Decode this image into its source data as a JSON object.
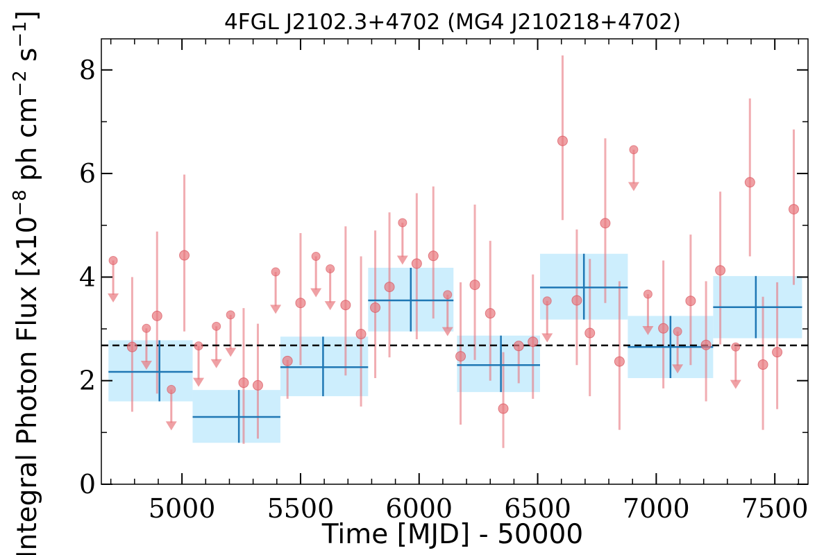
{
  "chart_data": {
    "type": "scatter",
    "title": "4FGL J2102.3+4702 (MG4 J210218+4702)",
    "xlabel": "Time [MJD] - 50000",
    "ylabel": "Integral Photon Flux [x10^-8 ph cm^-2 s^-1]",
    "xlim": [
      4660,
      7640
    ],
    "ylim": [
      0,
      8.6
    ],
    "x_ticks": [
      5000,
      5500,
      6000,
      6500,
      7000,
      7500
    ],
    "y_ticks": [
      0,
      2,
      4,
      6,
      8
    ],
    "grid": false,
    "mean_flux": 2.68,
    "colors": {
      "points": "#e8777e",
      "bins_fill": "#cdeefd",
      "bins_line": "#1f77b4",
      "mean_line": "#000000"
    },
    "series": [
      {
        "kind": "detections",
        "points": [
          {
            "x": 4790,
            "y": 2.65,
            "low": 1.4,
            "high": 4.0
          },
          {
            "x": 4895,
            "y": 3.25,
            "low": 1.75,
            "high": 4.88
          },
          {
            "x": 5010,
            "y": 4.42,
            "low": 2.95,
            "high": 5.98
          },
          {
            "x": 5260,
            "y": 1.96,
            "low": 0.78,
            "high": 3.4
          },
          {
            "x": 5320,
            "y": 1.91,
            "low": 0.88,
            "high": 3.1
          },
          {
            "x": 5445,
            "y": 2.38,
            "low": 1.65,
            "high": 2.4
          },
          {
            "x": 5500,
            "y": 3.5,
            "low": 2.3,
            "high": 4.85
          },
          {
            "x": 5690,
            "y": 3.46,
            "low": 2.1,
            "high": 4.98
          },
          {
            "x": 5755,
            "y": 2.9,
            "low": 1.5,
            "high": 4.4
          },
          {
            "x": 5815,
            "y": 3.41,
            "low": 2.05,
            "high": 4.9
          },
          {
            "x": 5875,
            "y": 3.81,
            "low": 2.45,
            "high": 5.25
          },
          {
            "x": 5990,
            "y": 4.26,
            "low": 2.8,
            "high": 5.62
          },
          {
            "x": 6060,
            "y": 4.41,
            "low": 3.2,
            "high": 5.75
          },
          {
            "x": 6175,
            "y": 2.47,
            "low": 1.15,
            "high": 3.9
          },
          {
            "x": 6235,
            "y": 3.85,
            "low": 2.4,
            "high": 5.4
          },
          {
            "x": 6300,
            "y": 3.3,
            "low": 2.0,
            "high": 4.7
          },
          {
            "x": 6355,
            "y": 1.46,
            "low": 0.7,
            "high": 2.55
          },
          {
            "x": 6420,
            "y": 2.67,
            "low": 1.95,
            "high": 2.68
          },
          {
            "x": 6480,
            "y": 2.75,
            "low": 1.65,
            "high": 4.05
          },
          {
            "x": 6605,
            "y": 6.63,
            "low": 5.1,
            "high": 8.28
          },
          {
            "x": 6665,
            "y": 3.55,
            "low": 2.3,
            "high": 4.92
          },
          {
            "x": 6720,
            "y": 2.92,
            "low": 1.7,
            "high": 4.35
          },
          {
            "x": 6785,
            "y": 5.04,
            "low": 3.5,
            "high": 6.68
          },
          {
            "x": 6845,
            "y": 2.37,
            "low": 1.05,
            "high": 3.92
          },
          {
            "x": 7030,
            "y": 3.01,
            "low": 1.85,
            "high": 4.32
          },
          {
            "x": 7145,
            "y": 3.54,
            "low": 2.3,
            "high": 4.82
          },
          {
            "x": 7210,
            "y": 2.69,
            "low": 1.6,
            "high": 3.92
          },
          {
            "x": 7270,
            "y": 4.13,
            "low": 2.7,
            "high": 5.65
          },
          {
            "x": 7395,
            "y": 5.83,
            "low": 4.4,
            "high": 7.45
          },
          {
            "x": 7450,
            "y": 2.31,
            "low": 1.05,
            "high": 3.62
          },
          {
            "x": 7510,
            "y": 2.55,
            "low": 1.45,
            "high": 3.9
          },
          {
            "x": 7580,
            "y": 5.31,
            "low": 3.85,
            "high": 6.85
          }
        ]
      },
      {
        "kind": "upper_limits",
        "points": [
          {
            "x": 4710,
            "y": 4.32,
            "arrow_to": 3.55
          },
          {
            "x": 4850,
            "y": 3.01,
            "arrow_to": 2.25
          },
          {
            "x": 4955,
            "y": 1.83,
            "arrow_to": 1.08
          },
          {
            "x": 5070,
            "y": 2.67,
            "arrow_to": 1.92
          },
          {
            "x": 5145,
            "y": 3.05,
            "arrow_to": 2.28
          },
          {
            "x": 5205,
            "y": 3.27,
            "arrow_to": 2.5
          },
          {
            "x": 5395,
            "y": 4.1,
            "arrow_to": 3.33
          },
          {
            "x": 5565,
            "y": 4.4,
            "arrow_to": 3.65
          },
          {
            "x": 5625,
            "y": 4.16,
            "arrow_to": 3.4
          },
          {
            "x": 5930,
            "y": 5.05,
            "arrow_to": 4.28
          },
          {
            "x": 6120,
            "y": 3.66,
            "arrow_to": 2.9
          },
          {
            "x": 6540,
            "y": 3.54,
            "arrow_to": 2.78
          },
          {
            "x": 6905,
            "y": 6.46,
            "arrow_to": 5.7
          },
          {
            "x": 6965,
            "y": 3.67,
            "arrow_to": 2.92
          },
          {
            "x": 7090,
            "y": 2.95,
            "arrow_to": 2.18
          },
          {
            "x": 7335,
            "y": 2.65,
            "arrow_to": 1.88
          }
        ]
      },
      {
        "kind": "long_bins",
        "bins": [
          {
            "x0": 4690,
            "x1": 5045,
            "xc": 4905,
            "y": 2.17,
            "ylo": 1.6,
            "yhi": 2.78
          },
          {
            "x0": 5045,
            "x1": 5415,
            "xc": 5240,
            "y": 1.3,
            "ylo": 0.8,
            "yhi": 1.82
          },
          {
            "x0": 5415,
            "x1": 5785,
            "xc": 5595,
            "y": 2.26,
            "ylo": 1.7,
            "yhi": 2.85
          },
          {
            "x0": 5785,
            "x1": 6145,
            "xc": 5965,
            "y": 3.55,
            "ylo": 2.95,
            "yhi": 4.18
          },
          {
            "x0": 6160,
            "x1": 6510,
            "xc": 6345,
            "y": 2.3,
            "ylo": 1.78,
            "yhi": 2.87
          },
          {
            "x0": 6510,
            "x1": 6880,
            "xc": 6695,
            "y": 3.8,
            "ylo": 3.18,
            "yhi": 4.45
          },
          {
            "x0": 6880,
            "x1": 7240,
            "xc": 7060,
            "y": 2.65,
            "ylo": 2.05,
            "yhi": 3.25
          },
          {
            "x0": 7240,
            "x1": 7615,
            "xc": 7420,
            "y": 3.42,
            "ylo": 2.82,
            "yhi": 4.02
          }
        ]
      }
    ]
  }
}
